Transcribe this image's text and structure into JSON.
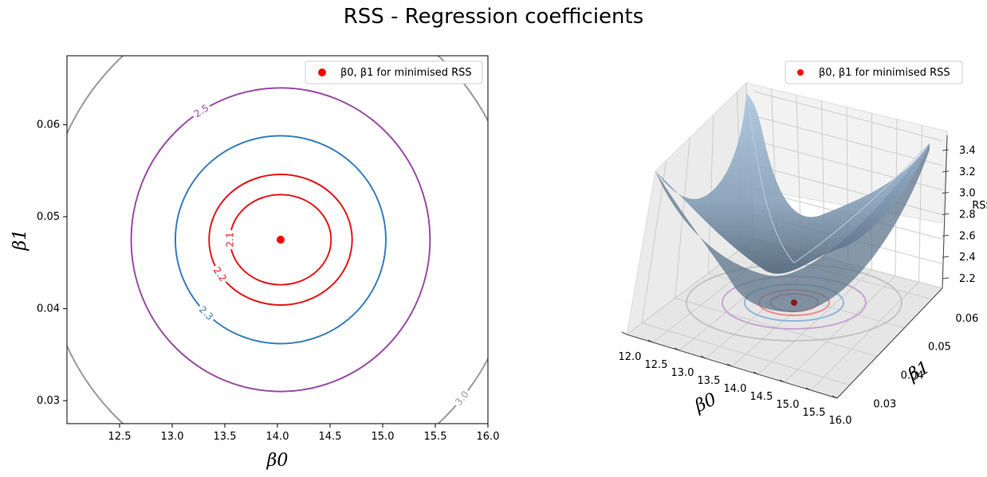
{
  "figure": {
    "title": "RSS - Regression coefficients"
  },
  "chart_data": [
    {
      "type": "contour",
      "xlabel": "β0",
      "ylabel": "β1",
      "xlim": [
        12.0,
        16.0
      ],
      "ylim": [
        0.0275,
        0.0675
      ],
      "xticks": [
        "12.5",
        "13.0",
        "13.5",
        "14.0",
        "14.5",
        "15.0",
        "15.5",
        "16.0"
      ],
      "yticks": [
        "0.03",
        "0.04",
        "0.05",
        "0.06"
      ],
      "minimum": {
        "x": 14.03,
        "y": 0.0475
      },
      "levels": [
        {
          "value": 2.1,
          "label": "2.1",
          "color": "#e41a1c",
          "rx": 0.48,
          "ry": 0.0049
        },
        {
          "value": 2.2,
          "label": "2.2",
          "color": "#e41a1c",
          "rx": 0.68,
          "ry": 0.0071
        },
        {
          "value": 2.3,
          "label": "2.3",
          "color": "#377eb8",
          "rx": 1.0,
          "ry": 0.0113
        },
        {
          "value": 2.5,
          "label": "2.5",
          "color": "#984ea3",
          "rx": 1.42,
          "ry": 0.0165
        },
        {
          "value": 3.0,
          "label": "3.0",
          "color": "#999999",
          "rx": 2.25,
          "ry": 0.0268
        }
      ],
      "legend": {
        "label": "β0, β1 for minimised RSS",
        "position": "upper right"
      }
    },
    {
      "type": "surface3d",
      "xlabel": "β0",
      "ylabel": "β1",
      "zlabel": "RSS",
      "xticks": [
        "12.0",
        "12.5",
        "13.0",
        "13.5",
        "14.0",
        "14.5",
        "15.0",
        "15.5",
        "16.0"
      ],
      "yticks": [
        "0.03",
        "0.04",
        "0.05",
        "0.06"
      ],
      "zticks": [
        "2.2",
        "2.4",
        "2.6",
        "2.8",
        "3.0",
        "3.2",
        "3.4"
      ],
      "legend": {
        "label": "β0, β1 for minimised RSS",
        "position": "upper right"
      }
    }
  ]
}
